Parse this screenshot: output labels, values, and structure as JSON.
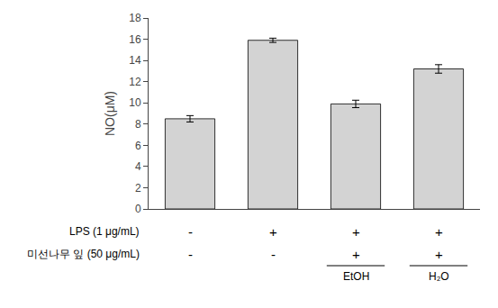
{
  "chart_data": {
    "type": "bar",
    "categories": [
      null,
      null,
      null,
      null
    ],
    "values": [
      8.5,
      15.9,
      9.9,
      13.2
    ],
    "errors": [
      0.3,
      0.2,
      0.35,
      0.4
    ],
    "color": "#d3d3d3",
    "ylabel": "NO(μM)",
    "ylim": [
      0,
      18
    ],
    "yticks": [
      0,
      2,
      4,
      6,
      8,
      10,
      12,
      14,
      16,
      18
    ],
    "grid": false,
    "tick_labels": "y",
    "annotations": [
      {
        "label": "LPS (1 μg/mL)",
        "texts": [
          "-",
          "+",
          "+",
          "+"
        ]
      },
      {
        "label": "미선나무 잎 (50 μg/mL)",
        "texts": [
          "-",
          "-",
          "+",
          "+"
        ]
      },
      {
        "texts": [
          null,
          null,
          "EtOH",
          "H₂O"
        ]
      }
    ]
  }
}
